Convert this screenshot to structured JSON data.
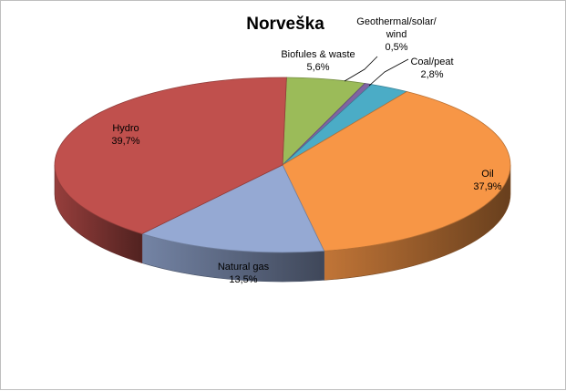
{
  "chart_data": {
    "type": "pie",
    "title": "Norveška",
    "slices": [
      {
        "name": "Biofules & waste",
        "value": 5.6,
        "label": "5,6%",
        "color": "#9bbb59"
      },
      {
        "name": "Geothermal/solar/wind",
        "label_lines": [
          "Geothermal/solar/",
          "wind"
        ],
        "value": 0.5,
        "label": "0,5%",
        "color": "#8064a2"
      },
      {
        "name": "Coal/peat",
        "value": 2.8,
        "label": "2,8%",
        "color": "#4bacc6"
      },
      {
        "name": "Oil",
        "value": 37.9,
        "label": "37,9%",
        "color": "#f79646"
      },
      {
        "name": "Natural gas",
        "value": 13.5,
        "label": "13,5%",
        "color": "#95a9d3"
      },
      {
        "name": "Hydro",
        "value": 39.7,
        "label": "39,7%",
        "color": "#c0504d"
      }
    ]
  }
}
